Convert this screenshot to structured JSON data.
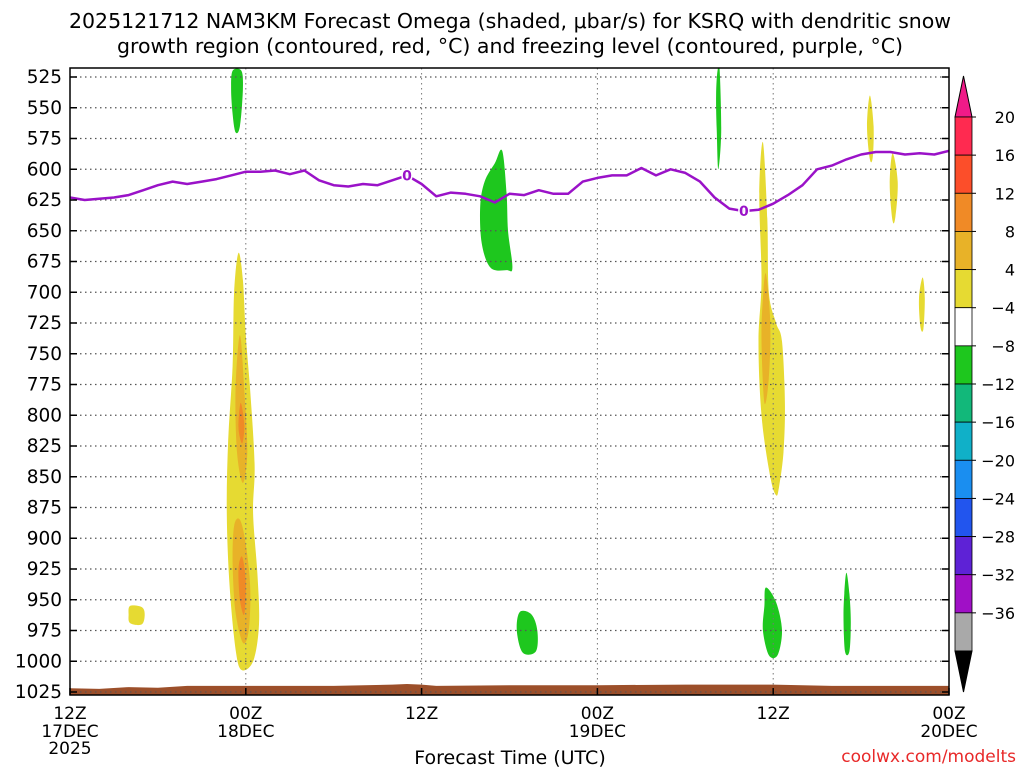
{
  "chart_data": {
    "type": "time-height cross section (filled contour)",
    "title_line1": "2025121712 NAM3KM Forecast Omega (shaded, μbar/s) for KSRQ with dendritic snow",
    "title_line2": "growth region (contoured, red, °C) and freezing level (contoured, purple, °C)",
    "xlabel": "Forecast Time (UTC)",
    "credit": "coolwx.com/modelts",
    "x_range_hours": [
      0,
      60
    ],
    "x_ticks": [
      {
        "h": 0,
        "line1": "12Z",
        "line2": "17DEC",
        "line3": "2025"
      },
      {
        "h": 12,
        "line1": "00Z",
        "line2": "18DEC",
        "line3": ""
      },
      {
        "h": 24,
        "line1": "12Z",
        "line2": "",
        "line3": ""
      },
      {
        "h": 36,
        "line1": "00Z",
        "line2": "19DEC",
        "line3": ""
      },
      {
        "h": 48,
        "line1": "12Z",
        "line2": "",
        "line3": ""
      },
      {
        "h": 60,
        "line1": "00Z",
        "line2": "20DEC",
        "line3": ""
      }
    ],
    "y_range_hpa": [
      520,
      1030
    ],
    "y_ticks_hpa": [
      525,
      550,
      575,
      600,
      625,
      650,
      675,
      700,
      725,
      750,
      775,
      800,
      825,
      850,
      875,
      900,
      925,
      950,
      975,
      1000,
      1025
    ],
    "freezing_level": {
      "label": "0",
      "points_hour_hpa": [
        [
          0,
          623
        ],
        [
          1,
          625
        ],
        [
          2,
          624
        ],
        [
          3,
          623
        ],
        [
          4,
          621
        ],
        [
          5,
          617
        ],
        [
          6,
          613
        ],
        [
          7,
          610
        ],
        [
          8,
          612
        ],
        [
          9,
          610
        ],
        [
          10,
          608
        ],
        [
          11,
          605
        ],
        [
          12,
          602
        ],
        [
          13,
          602
        ],
        [
          14,
          601
        ],
        [
          15,
          604
        ],
        [
          16,
          601
        ],
        [
          17,
          609
        ],
        [
          18,
          613
        ],
        [
          19,
          614
        ],
        [
          20,
          612
        ],
        [
          21,
          613
        ],
        [
          22,
          609
        ],
        [
          23,
          605
        ],
        [
          24,
          612
        ],
        [
          25,
          622
        ],
        [
          26,
          619
        ],
        [
          27,
          620
        ],
        [
          28,
          622
        ],
        [
          29,
          627
        ],
        [
          30,
          620
        ],
        [
          31,
          621
        ],
        [
          32,
          617
        ],
        [
          33,
          620
        ],
        [
          34,
          620
        ],
        [
          35,
          610
        ],
        [
          36,
          607
        ],
        [
          37,
          605
        ],
        [
          38,
          605
        ],
        [
          39,
          599
        ],
        [
          40,
          605
        ],
        [
          41,
          600
        ],
        [
          42,
          603
        ],
        [
          43,
          610
        ],
        [
          44,
          623
        ],
        [
          45,
          632
        ],
        [
          46,
          634
        ],
        [
          47,
          633
        ],
        [
          48,
          628
        ],
        [
          49,
          621
        ],
        [
          50,
          613
        ],
        [
          51,
          600
        ],
        [
          52,
          597
        ],
        [
          53,
          592
        ],
        [
          54,
          588
        ],
        [
          55,
          586
        ],
        [
          56,
          586
        ],
        [
          57,
          588
        ],
        [
          58,
          587
        ],
        [
          59,
          588
        ],
        [
          60,
          585
        ]
      ]
    },
    "omega_regions": [
      {
        "category": "-8",
        "points": [
          [
            11.1,
            520
          ],
          [
            11.7,
            520
          ],
          [
            11.8,
            535
          ],
          [
            11.6,
            565
          ],
          [
            11.3,
            570
          ],
          [
            11.1,
            555
          ],
          [
            11.0,
            535
          ]
        ]
      },
      {
        "category": "4",
        "points": [
          [
            11.5,
            668
          ],
          [
            11.8,
            690
          ],
          [
            12.0,
            735
          ],
          [
            12.3,
            780
          ],
          [
            12.6,
            840
          ],
          [
            12.5,
            880
          ],
          [
            12.8,
            930
          ],
          [
            12.9,
            970
          ],
          [
            12.5,
            1000
          ],
          [
            11.7,
            1007
          ],
          [
            11.3,
            990
          ],
          [
            10.9,
            940
          ],
          [
            10.7,
            880
          ],
          [
            10.8,
            820
          ],
          [
            11.1,
            760
          ],
          [
            11.2,
            700
          ]
        ]
      },
      {
        "category": "8",
        "points": [
          [
            11.6,
            735
          ],
          [
            11.9,
            780
          ],
          [
            12.1,
            830
          ],
          [
            11.8,
            855
          ],
          [
            11.4,
            830
          ],
          [
            11.3,
            780
          ]
        ]
      },
      {
        "category": "8",
        "points": [
          [
            11.6,
            885
          ],
          [
            12.0,
            905
          ],
          [
            12.3,
            940
          ],
          [
            12.2,
            975
          ],
          [
            11.8,
            985
          ],
          [
            11.3,
            960
          ],
          [
            11.1,
            920
          ],
          [
            11.2,
            890
          ]
        ]
      },
      {
        "category": "12",
        "points": [
          [
            11.65,
            790
          ],
          [
            11.9,
            808
          ],
          [
            11.75,
            823
          ],
          [
            11.5,
            810
          ]
        ]
      },
      {
        "category": "12",
        "points": [
          [
            11.75,
            915
          ],
          [
            12.0,
            935
          ],
          [
            11.9,
            962
          ],
          [
            11.6,
            950
          ],
          [
            11.5,
            925
          ]
        ]
      },
      {
        "category": "4",
        "points": [
          [
            4.1,
            955
          ],
          [
            4.9,
            956
          ],
          [
            5.1,
            962
          ],
          [
            4.9,
            970
          ],
          [
            4.1,
            969
          ],
          [
            4.0,
            962
          ]
        ]
      },
      {
        "category": "-8",
        "points": [
          [
            29.5,
            585
          ],
          [
            29.8,
            620
          ],
          [
            29.9,
            650
          ],
          [
            30.2,
            680
          ],
          [
            29.8,
            682
          ],
          [
            28.7,
            680
          ],
          [
            28.1,
            660
          ],
          [
            28.0,
            630
          ],
          [
            28.3,
            610
          ],
          [
            29.0,
            595
          ]
        ]
      },
      {
        "category": "-8",
        "points": [
          [
            30.7,
            960
          ],
          [
            31.5,
            962
          ],
          [
            31.9,
            975
          ],
          [
            31.8,
            992
          ],
          [
            30.9,
            993
          ],
          [
            30.5,
            975
          ]
        ]
      },
      {
        "category": "-8",
        "points": [
          [
            44.2,
            520
          ],
          [
            44.35,
            520
          ],
          [
            44.45,
            570
          ],
          [
            44.25,
            600
          ],
          [
            44.15,
            570
          ],
          [
            44.1,
            540
          ]
        ]
      },
      {
        "category": "4",
        "points": [
          [
            47.3,
            578
          ],
          [
            47.6,
            640
          ],
          [
            47.7,
            700
          ],
          [
            48.2,
            725
          ],
          [
            48.6,
            740
          ],
          [
            48.8,
            790
          ],
          [
            48.7,
            830
          ],
          [
            48.4,
            858
          ],
          [
            48.2,
            865
          ],
          [
            47.8,
            850
          ],
          [
            47.2,
            800
          ],
          [
            47.0,
            740
          ],
          [
            47.2,
            690
          ],
          [
            47.05,
            620
          ]
        ]
      },
      {
        "category": "8",
        "points": [
          [
            47.5,
            685
          ],
          [
            47.8,
            725
          ],
          [
            47.7,
            770
          ],
          [
            47.4,
            790
          ],
          [
            47.2,
            740
          ],
          [
            47.3,
            705
          ]
        ]
      },
      {
        "category": "-8",
        "points": [
          [
            47.5,
            940
          ],
          [
            48.2,
            952
          ],
          [
            48.6,
            975
          ],
          [
            48.3,
            995
          ],
          [
            47.7,
            995
          ],
          [
            47.3,
            975
          ],
          [
            47.4,
            955
          ]
        ]
      },
      {
        "category": "-8",
        "points": [
          [
            53.0,
            928
          ],
          [
            53.2,
            945
          ],
          [
            53.3,
            968
          ],
          [
            53.2,
            992
          ],
          [
            52.9,
            992
          ],
          [
            52.8,
            965
          ],
          [
            52.85,
            945
          ]
        ]
      },
      {
        "category": "4",
        "points": [
          [
            54.6,
            540
          ],
          [
            54.85,
            565
          ],
          [
            54.8,
            590
          ],
          [
            54.6,
            592
          ],
          [
            54.4,
            565
          ]
        ]
      },
      {
        "category": "4",
        "points": [
          [
            56.15,
            587
          ],
          [
            56.5,
            610
          ],
          [
            56.35,
            638
          ],
          [
            56.15,
            642
          ],
          [
            55.95,
            612
          ]
        ]
      },
      {
        "category": "4",
        "points": [
          [
            58.2,
            688
          ],
          [
            58.35,
            705
          ],
          [
            58.25,
            730
          ],
          [
            58.05,
            728
          ],
          [
            57.95,
            705
          ]
        ]
      }
    ],
    "terrain": {
      "fill": "#9c4f2a",
      "top_points_hour_hpa": [
        [
          0,
          1022
        ],
        [
          2,
          1022.5
        ],
        [
          4,
          1021
        ],
        [
          6,
          1021.5
        ],
        [
          8,
          1020
        ],
        [
          12,
          1020
        ],
        [
          18,
          1020
        ],
        [
          22,
          1019
        ],
        [
          23,
          1018.5
        ],
        [
          24,
          1019
        ],
        [
          25,
          1020
        ],
        [
          30,
          1019.5
        ],
        [
          36,
          1019.5
        ],
        [
          42,
          1019
        ],
        [
          48,
          1019
        ],
        [
          50,
          1019.5
        ],
        [
          52,
          1020
        ],
        [
          60,
          1020
        ]
      ]
    },
    "colorbar": {
      "tick_labels": [
        "20",
        "16",
        "12",
        "8",
        "4",
        "−4",
        "−8",
        "−12",
        "−16",
        "−20",
        "−24",
        "−28",
        "−32",
        "−36"
      ],
      "segments": [
        {
          "color": "#ff2a50"
        },
        {
          "color": "#fc4e2a"
        },
        {
          "color": "#f08a26"
        },
        {
          "color": "#e8b228"
        },
        {
          "color": "#e6da32"
        },
        {
          "color": "#ffffff"
        },
        {
          "color": "#1ec71e"
        },
        {
          "color": "#12b87a"
        },
        {
          "color": "#10b0c8"
        },
        {
          "color": "#1a8ef0"
        },
        {
          "color": "#2255ee"
        },
        {
          "color": "#5e22d6"
        },
        {
          "color": "#a010c6"
        },
        {
          "color": "#a9a9a9"
        }
      ],
      "top_arrow_color": "#f01a88",
      "bottom_arrow_color": "#000000"
    },
    "category_colors": {
      "-8": "#1ec71e",
      "4": "#e6da32",
      "8": "#e8b228",
      "12": "#f08a26"
    },
    "freezing_color": "#9a12c8",
    "grid": "dotted"
  }
}
